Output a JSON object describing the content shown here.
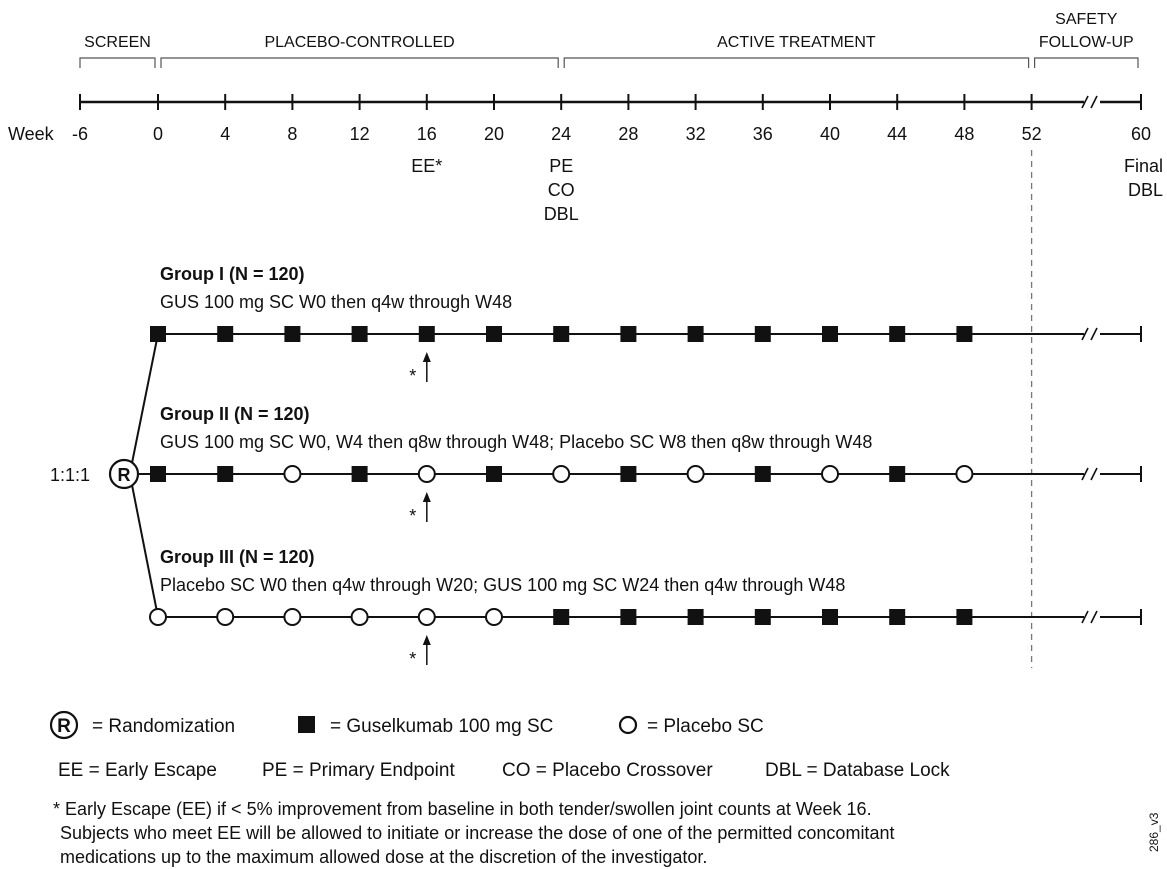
{
  "phases": [
    {
      "label": "SCREEN",
      "from": -6,
      "to": 0
    },
    {
      "label": "PLACEBO-CONTROLLED",
      "from": 0,
      "to": 24
    },
    {
      "label": "ACTIVE TREATMENT",
      "from": 24,
      "to": 52
    },
    {
      "label": "SAFETY",
      "label2": "FOLLOW-UP",
      "from": 52,
      "to": 60
    }
  ],
  "timeline": {
    "week_label": "Week",
    "weeks": [
      -6,
      0,
      4,
      8,
      12,
      16,
      20,
      24,
      28,
      32,
      36,
      40,
      44,
      48,
      52,
      60
    ],
    "break_between": [
      52,
      60
    ]
  },
  "milestones": [
    {
      "week": 16,
      "lines": [
        "EE*"
      ]
    },
    {
      "week": 24,
      "lines": [
        "PE",
        "CO",
        "DBL"
      ]
    },
    {
      "week": 60,
      "lines": [
        "Final",
        "DBL"
      ]
    }
  ],
  "ratio": "1:1:1",
  "randomization_symbol": "R",
  "arrow_note": "*",
  "groups": [
    {
      "title": "Group I (N = 120)",
      "desc": "GUS 100 mg SC W0 then q4w through W48",
      "doses": [
        {
          "week": 0,
          "type": "gus"
        },
        {
          "week": 4,
          "type": "gus"
        },
        {
          "week": 8,
          "type": "gus"
        },
        {
          "week": 12,
          "type": "gus"
        },
        {
          "week": 16,
          "type": "gus"
        },
        {
          "week": 20,
          "type": "gus"
        },
        {
          "week": 24,
          "type": "gus"
        },
        {
          "week": 28,
          "type": "gus"
        },
        {
          "week": 32,
          "type": "gus"
        },
        {
          "week": 36,
          "type": "gus"
        },
        {
          "week": 40,
          "type": "gus"
        },
        {
          "week": 44,
          "type": "gus"
        },
        {
          "week": 48,
          "type": "gus"
        }
      ]
    },
    {
      "title": "Group II (N = 120)",
      "desc": "GUS 100 mg SC W0, W4 then q8w through W48; Placebo SC W8 then q8w through W48",
      "doses": [
        {
          "week": 0,
          "type": "gus"
        },
        {
          "week": 4,
          "type": "gus"
        },
        {
          "week": 8,
          "type": "placebo"
        },
        {
          "week": 12,
          "type": "gus"
        },
        {
          "week": 16,
          "type": "placebo"
        },
        {
          "week": 20,
          "type": "gus"
        },
        {
          "week": 24,
          "type": "placebo"
        },
        {
          "week": 28,
          "type": "gus"
        },
        {
          "week": 32,
          "type": "placebo"
        },
        {
          "week": 36,
          "type": "gus"
        },
        {
          "week": 40,
          "type": "placebo"
        },
        {
          "week": 44,
          "type": "gus"
        },
        {
          "week": 48,
          "type": "placebo"
        }
      ]
    },
    {
      "title": "Group III (N = 120)",
      "desc": "Placebo SC W0 then q4w through W20; GUS 100 mg SC W24 then q4w through W48",
      "doses": [
        {
          "week": 0,
          "type": "placebo"
        },
        {
          "week": 4,
          "type": "placebo"
        },
        {
          "week": 8,
          "type": "placebo"
        },
        {
          "week": 12,
          "type": "placebo"
        },
        {
          "week": 16,
          "type": "placebo"
        },
        {
          "week": 20,
          "type": "placebo"
        },
        {
          "week": 24,
          "type": "gus"
        },
        {
          "week": 28,
          "type": "gus"
        },
        {
          "week": 32,
          "type": "gus"
        },
        {
          "week": 36,
          "type": "gus"
        },
        {
          "week": 40,
          "type": "gus"
        },
        {
          "week": 44,
          "type": "gus"
        },
        {
          "week": 48,
          "type": "gus"
        }
      ]
    }
  ],
  "legend": {
    "randomization": "= Randomization",
    "guselkumab": "= Guselkumab 100 mg SC",
    "placebo": "= Placebo SC"
  },
  "abbreviations": [
    "EE = Early Escape",
    "PE = Primary Endpoint",
    "CO = Placebo Crossover",
    "DBL = Database Lock"
  ],
  "footnote": [
    "* Early Escape (EE) if < 5% improvement from baseline in both tender/swollen joint counts at Week 16.",
    "Subjects who meet EE will be allowed to initiate or increase the dose of one of the permitted concomitant",
    "medications up to the maximum allowed dose at the discretion of the investigator."
  ],
  "figure_code": "286_v3"
}
